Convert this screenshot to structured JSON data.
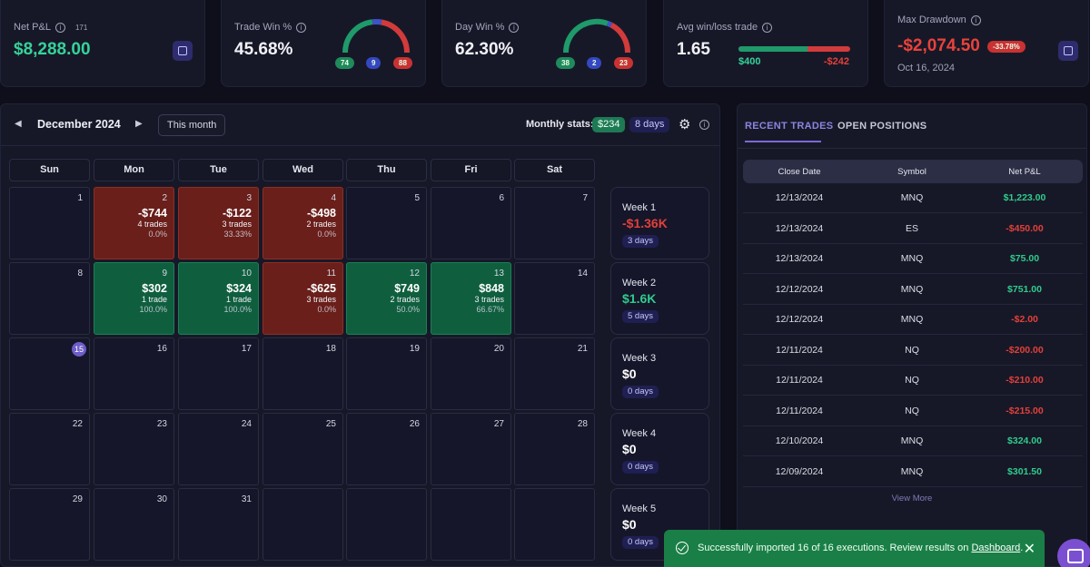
{
  "cards": {
    "net_pl": {
      "label": "Net P&L",
      "count": "171",
      "value": "$8,288.00"
    },
    "trade_win": {
      "label": "Trade Win %",
      "value": "45.68%",
      "wins": "74",
      "breakeven": "9",
      "losses": "88"
    },
    "day_win": {
      "label": "Day Win %",
      "value": "62.30%",
      "wins": "38",
      "breakeven": "2",
      "losses": "23"
    },
    "avg_win_loss": {
      "label": "Avg win/loss trade",
      "value": "1.65",
      "avg_win": "$400",
      "avg_loss": "-$242",
      "win_share": 0.62
    },
    "max_drawdown": {
      "label": "Max Drawdown",
      "value": "-$2,074.50",
      "pct": "-33.78%",
      "date": "Oct 16, 2024"
    }
  },
  "calendar": {
    "month": "December 2024",
    "this_month": "This month",
    "stats_label": "Monthly stats:",
    "stats_value": "$234",
    "stats_days": "8 days",
    "weekdays": [
      "Sun",
      "Mon",
      "Tue",
      "Wed",
      "Thu",
      "Fri",
      "Sat"
    ],
    "days": {
      "1": {
        "n": "1"
      },
      "2": {
        "n": "2",
        "pl": "-$744",
        "trades": "4 trades",
        "pct": "0.0%"
      },
      "3": {
        "n": "3",
        "pl": "-$122",
        "trades": "3 trades",
        "pct": "33.33%"
      },
      "4": {
        "n": "4",
        "pl": "-$498",
        "trades": "2 trades",
        "pct": "0.0%"
      },
      "5": {
        "n": "5"
      },
      "6": {
        "n": "6"
      },
      "7": {
        "n": "7"
      },
      "8": {
        "n": "8"
      },
      "9": {
        "n": "9",
        "pl": "$302",
        "trades": "1 trade",
        "pct": "100.0%"
      },
      "10": {
        "n": "10",
        "pl": "$324",
        "trades": "1 trade",
        "pct": "100.0%"
      },
      "11": {
        "n": "11",
        "pl": "-$625",
        "trades": "3 trades",
        "pct": "0.0%"
      },
      "12": {
        "n": "12",
        "pl": "$749",
        "trades": "2 trades",
        "pct": "50.0%"
      },
      "13": {
        "n": "13",
        "pl": "$848",
        "trades": "3 trades",
        "pct": "66.67%"
      },
      "14": {
        "n": "14"
      },
      "15": {
        "n": "15"
      },
      "16": {
        "n": "16"
      },
      "17": {
        "n": "17"
      },
      "18": {
        "n": "18"
      },
      "19": {
        "n": "19"
      },
      "20": {
        "n": "20"
      },
      "21": {
        "n": "21"
      },
      "22": {
        "n": "22"
      },
      "23": {
        "n": "23"
      },
      "24": {
        "n": "24"
      },
      "25": {
        "n": "25"
      },
      "26": {
        "n": "26"
      },
      "27": {
        "n": "27"
      },
      "28": {
        "n": "28"
      },
      "29": {
        "n": "29"
      },
      "30": {
        "n": "30"
      },
      "31": {
        "n": "31"
      }
    },
    "weeks": [
      {
        "label": "Week 1",
        "value": "-$1.36K",
        "days": "3 days"
      },
      {
        "label": "Week 2",
        "value": "$1.6K",
        "days": "5 days"
      },
      {
        "label": "Week 3",
        "value": "$0",
        "days": "0 days"
      },
      {
        "label": "Week 4",
        "value": "$0",
        "days": "0 days"
      },
      {
        "label": "Week 5",
        "value": "$0",
        "days": "0 days"
      }
    ]
  },
  "trades": {
    "tab_recent": "RECENT TRADES",
    "tab_open": "OPEN POSITIONS",
    "headers": [
      "Close Date",
      "Symbol",
      "Net P&L"
    ],
    "rows": [
      [
        "12/13/2024",
        "MNQ",
        "$1,223.00"
      ],
      [
        "12/13/2024",
        "ES",
        "-$450.00"
      ],
      [
        "12/13/2024",
        "MNQ",
        "$75.00"
      ],
      [
        "12/12/2024",
        "MNQ",
        "$751.00"
      ],
      [
        "12/12/2024",
        "MNQ",
        "-$2.00"
      ],
      [
        "12/11/2024",
        "NQ",
        "-$200.00"
      ],
      [
        "12/11/2024",
        "NQ",
        "-$210.00"
      ],
      [
        "12/11/2024",
        "NQ",
        "-$215.00"
      ],
      [
        "12/10/2024",
        "MNQ",
        "$324.00"
      ],
      [
        "12/09/2024",
        "MNQ",
        "$301.50"
      ]
    ],
    "view_more": "View More"
  },
  "toast": {
    "message": "Successfully imported 16 of 16 executions. Review results on ",
    "link": "Dashboard",
    "end": "."
  },
  "colors": {
    "green": "#2fcb8c",
    "red": "#e2403a",
    "blue": "#3f53c8",
    "accent": "#7a6ad8"
  }
}
